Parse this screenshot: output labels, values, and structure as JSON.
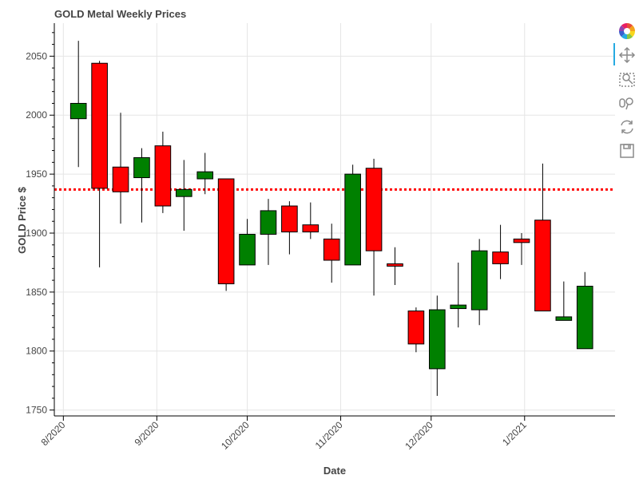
{
  "chart_data": {
    "type": "candlestick",
    "title": "GOLD Metal Weekly Prices",
    "xlabel": "Date",
    "ylabel": "GOLD Price $",
    "ylim": [
      1745,
      2078
    ],
    "yticks": [
      1750,
      1800,
      1850,
      1900,
      1950,
      2000,
      2050
    ],
    "xlim": [
      "2020-07-29",
      "2021-01-31"
    ],
    "xticks": [
      {
        "date": "2020-08-01",
        "label": "8/2020"
      },
      {
        "date": "2020-09-01",
        "label": "9/2020"
      },
      {
        "date": "2020-10-01",
        "label": "10/2020"
      },
      {
        "date": "2020-11-01",
        "label": "11/2020"
      },
      {
        "date": "2020-12-01",
        "label": "12/2020"
      },
      {
        "date": "2021-01-01",
        "label": "1/2021"
      }
    ],
    "grid": true,
    "up_color": "#008000",
    "down_color": "#ff0000",
    "reference_line": {
      "value": 1937,
      "color": "#ff0000",
      "style": "dotted"
    },
    "candles": [
      {
        "date": "2020-08-06",
        "open": 1997,
        "high": 2063,
        "low": 1956,
        "close": 2010
      },
      {
        "date": "2020-08-13",
        "open": 2044,
        "high": 2046,
        "low": 1871,
        "close": 1938
      },
      {
        "date": "2020-08-20",
        "open": 1956,
        "high": 2002,
        "low": 1908,
        "close": 1935
      },
      {
        "date": "2020-08-27",
        "open": 1947,
        "high": 1972,
        "low": 1909,
        "close": 1964
      },
      {
        "date": "2020-09-03",
        "open": 1974,
        "high": 1986,
        "low": 1917,
        "close": 1923
      },
      {
        "date": "2020-09-10",
        "open": 1931,
        "high": 1962,
        "low": 1902,
        "close": 1937
      },
      {
        "date": "2020-09-17",
        "open": 1946,
        "high": 1968,
        "low": 1933,
        "close": 1952
      },
      {
        "date": "2020-09-24",
        "open": 1946,
        "high": 1946,
        "low": 1851,
        "close": 1857
      },
      {
        "date": "2020-10-01",
        "open": 1873,
        "high": 1912,
        "low": 1873,
        "close": 1899
      },
      {
        "date": "2020-10-08",
        "open": 1899,
        "high": 1929,
        "low": 1873,
        "close": 1919
      },
      {
        "date": "2020-10-15",
        "open": 1923,
        "high": 1927,
        "low": 1882,
        "close": 1901
      },
      {
        "date": "2020-10-22",
        "open": 1907,
        "high": 1926,
        "low": 1895,
        "close": 1901
      },
      {
        "date": "2020-10-29",
        "open": 1895,
        "high": 1908,
        "low": 1858,
        "close": 1877
      },
      {
        "date": "2020-11-05",
        "open": 1873,
        "high": 1958,
        "low": 1873,
        "close": 1950
      },
      {
        "date": "2020-11-12",
        "open": 1955,
        "high": 1963,
        "low": 1847,
        "close": 1885
      },
      {
        "date": "2020-11-19",
        "open": 1874,
        "high": 1888,
        "low": 1856,
        "close": 1872
      },
      {
        "date": "2020-11-26",
        "open": 1834,
        "high": 1837,
        "low": 1799,
        "close": 1806
      },
      {
        "date": "2020-12-03",
        "open": 1785,
        "high": 1847,
        "low": 1762,
        "close": 1835
      },
      {
        "date": "2020-12-10",
        "open": 1836,
        "high": 1875,
        "low": 1820,
        "close": 1839
      },
      {
        "date": "2020-12-17",
        "open": 1835,
        "high": 1895,
        "low": 1822,
        "close": 1885
      },
      {
        "date": "2020-12-24",
        "open": 1884,
        "high": 1907,
        "low": 1861,
        "close": 1874
      },
      {
        "date": "2020-12-31",
        "open": 1895,
        "high": 1900,
        "low": 1873,
        "close": 1892
      },
      {
        "date": "2021-01-07",
        "open": 1911,
        "high": 1959,
        "low": 1834,
        "close": 1834
      },
      {
        "date": "2021-01-14",
        "open": 1826,
        "high": 1859,
        "low": 1826,
        "close": 1829
      },
      {
        "date": "2021-01-21",
        "open": 1802,
        "high": 1867,
        "low": 1802,
        "close": 1855
      }
    ]
  },
  "toolbar": {
    "logo_icon": "bokeh-logo-icon",
    "tools": [
      {
        "name": "pan-icon",
        "active": true
      },
      {
        "name": "box-zoom-icon",
        "active": false
      },
      {
        "name": "wheel-zoom-icon",
        "active": false
      },
      {
        "name": "reset-icon",
        "active": false
      },
      {
        "name": "save-icon",
        "active": false
      }
    ]
  }
}
